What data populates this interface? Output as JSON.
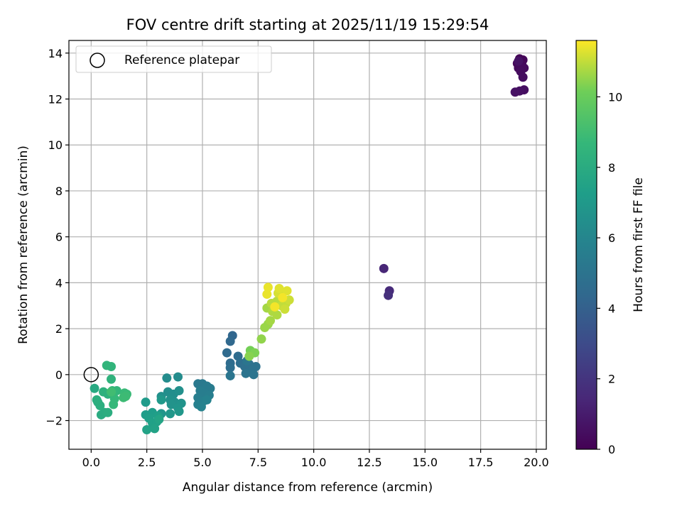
{
  "chart_data": {
    "type": "scatter",
    "title": "FOV centre drift starting at 2025/11/19 15:29:54",
    "xlabel": "Angular distance from reference (arcmin)",
    "ylabel": "Rotation from reference (arcmin)",
    "xlim": [
      -1.0,
      20.45
    ],
    "ylim": [
      -3.25,
      14.55
    ],
    "xticks": [
      0.0,
      2.5,
      5.0,
      7.5,
      10.0,
      12.5,
      15.0,
      17.5,
      20.0
    ],
    "xtick_labels": [
      "0.0",
      "2.5",
      "5.0",
      "7.5",
      "10.0",
      "12.5",
      "15.0",
      "17.5",
      "20.0"
    ],
    "yticks": [
      -2,
      0,
      2,
      4,
      6,
      8,
      10,
      12,
      14
    ],
    "ytick_labels": [
      "−2",
      "0",
      "2",
      "4",
      "6",
      "8",
      "10",
      "12",
      "14"
    ],
    "grid": true,
    "colormap": "viridis",
    "colorbar": {
      "label": "Hours from first FF file",
      "range": [
        0,
        11.6
      ],
      "ticks": [
        0,
        2,
        4,
        6,
        8,
        10
      ],
      "tick_labels": [
        "0",
        "2",
        "4",
        "6",
        "8",
        "10"
      ]
    },
    "legend": {
      "position": "top-left",
      "entries": [
        {
          "label": "Reference platepar",
          "marker": "open-circle"
        }
      ]
    },
    "reference_point": {
      "x": 0.0,
      "y": 0.0
    },
    "points": [
      {
        "x": 19.25,
        "y": 13.75,
        "c": 0.1
      },
      {
        "x": 19.4,
        "y": 13.7,
        "c": 0.15
      },
      {
        "x": 19.15,
        "y": 13.55,
        "c": 0.2
      },
      {
        "x": 19.35,
        "y": 13.5,
        "c": 0.25
      },
      {
        "x": 19.2,
        "y": 13.35,
        "c": 0.3
      },
      {
        "x": 19.45,
        "y": 13.35,
        "c": 0.35
      },
      {
        "x": 19.3,
        "y": 13.2,
        "c": 0.4
      },
      {
        "x": 19.4,
        "y": 12.95,
        "c": 0.45
      },
      {
        "x": 19.45,
        "y": 12.4,
        "c": 0.5
      },
      {
        "x": 19.25,
        "y": 12.35,
        "c": 0.55
      },
      {
        "x": 19.05,
        "y": 12.3,
        "c": 0.6
      },
      {
        "x": 19.2,
        "y": 13.65,
        "c": 0.65
      },
      {
        "x": 13.15,
        "y": 4.62,
        "c": 1.4
      },
      {
        "x": 13.4,
        "y": 3.65,
        "c": 1.6
      },
      {
        "x": 13.35,
        "y": 3.45,
        "c": 1.8
      },
      {
        "x": 6.35,
        "y": 1.7,
        "c": 4.3
      },
      {
        "x": 6.25,
        "y": 1.45,
        "c": 4.4
      },
      {
        "x": 6.1,
        "y": 0.95,
        "c": 4.5
      },
      {
        "x": 6.6,
        "y": 0.8,
        "c": 4.6
      },
      {
        "x": 6.25,
        "y": 0.5,
        "c": 4.6
      },
      {
        "x": 6.25,
        "y": 0.3,
        "c": 4.7
      },
      {
        "x": 6.7,
        "y": 0.5,
        "c": 4.7
      },
      {
        "x": 6.9,
        "y": 0.35,
        "c": 4.8
      },
      {
        "x": 7.1,
        "y": 0.45,
        "c": 4.8
      },
      {
        "x": 7.4,
        "y": 0.35,
        "c": 4.9
      },
      {
        "x": 7.25,
        "y": 0.2,
        "c": 4.9
      },
      {
        "x": 6.95,
        "y": 0.05,
        "c": 5.0
      },
      {
        "x": 7.3,
        "y": 0.0,
        "c": 5.0
      },
      {
        "x": 6.25,
        "y": -0.05,
        "c": 5.1
      },
      {
        "x": 7.0,
        "y": 0.6,
        "c": 5.1
      },
      {
        "x": 5.0,
        "y": -0.4,
        "c": 5.3
      },
      {
        "x": 4.8,
        "y": -0.4,
        "c": 5.3
      },
      {
        "x": 5.2,
        "y": -0.5,
        "c": 5.4
      },
      {
        "x": 5.35,
        "y": -0.6,
        "c": 5.4
      },
      {
        "x": 4.9,
        "y": -0.7,
        "c": 5.5
      },
      {
        "x": 5.1,
        "y": -0.8,
        "c": 5.5
      },
      {
        "x": 5.3,
        "y": -0.9,
        "c": 5.6
      },
      {
        "x": 4.8,
        "y": -1.0,
        "c": 5.6
      },
      {
        "x": 5.05,
        "y": -1.15,
        "c": 5.7
      },
      {
        "x": 4.8,
        "y": -1.3,
        "c": 5.7
      },
      {
        "x": 4.95,
        "y": -1.4,
        "c": 5.8
      },
      {
        "x": 5.2,
        "y": -1.1,
        "c": 5.8
      },
      {
        "x": 3.4,
        "y": -0.15,
        "c": 6.3
      },
      {
        "x": 3.9,
        "y": -0.1,
        "c": 6.3
      },
      {
        "x": 3.45,
        "y": -0.75,
        "c": 6.4
      },
      {
        "x": 3.7,
        "y": -0.85,
        "c": 6.4
      },
      {
        "x": 3.95,
        "y": -0.7,
        "c": 6.5
      },
      {
        "x": 3.15,
        "y": -0.95,
        "c": 6.5
      },
      {
        "x": 3.55,
        "y": -1.1,
        "c": 6.6
      },
      {
        "x": 3.75,
        "y": -1.2,
        "c": 6.6
      },
      {
        "x": 4.05,
        "y": -1.25,
        "c": 6.7
      },
      {
        "x": 3.6,
        "y": -1.3,
        "c": 6.7
      },
      {
        "x": 3.9,
        "y": -1.45,
        "c": 6.8
      },
      {
        "x": 3.15,
        "y": -1.7,
        "c": 6.8
      },
      {
        "x": 3.55,
        "y": -1.7,
        "c": 6.9
      },
      {
        "x": 3.95,
        "y": -1.6,
        "c": 6.9
      },
      {
        "x": 3.15,
        "y": -1.1,
        "c": 7.0
      },
      {
        "x": 2.45,
        "y": -1.2,
        "c": 7.1
      },
      {
        "x": 2.45,
        "y": -1.75,
        "c": 7.2
      },
      {
        "x": 2.75,
        "y": -1.65,
        "c": 7.2
      },
      {
        "x": 2.6,
        "y": -1.9,
        "c": 7.3
      },
      {
        "x": 3.0,
        "y": -1.8,
        "c": 7.3
      },
      {
        "x": 2.75,
        "y": -2.1,
        "c": 7.4
      },
      {
        "x": 2.95,
        "y": -2.05,
        "c": 7.4
      },
      {
        "x": 2.5,
        "y": -2.4,
        "c": 7.5
      },
      {
        "x": 2.85,
        "y": -2.35,
        "c": 7.5
      },
      {
        "x": 3.05,
        "y": -1.95,
        "c": 7.6
      },
      {
        "x": 0.15,
        "y": -0.6,
        "c": 7.9
      },
      {
        "x": 0.45,
        "y": -1.75,
        "c": 8.0
      },
      {
        "x": 0.6,
        "y": -1.65,
        "c": 8.0
      },
      {
        "x": 0.75,
        "y": -1.65,
        "c": 8.1
      },
      {
        "x": 0.3,
        "y": -1.2,
        "c": 8.1
      },
      {
        "x": 0.4,
        "y": -1.35,
        "c": 8.2
      },
      {
        "x": 0.25,
        "y": -1.1,
        "c": 8.2
      },
      {
        "x": 0.55,
        "y": -0.75,
        "c": 8.3
      },
      {
        "x": 0.75,
        "y": -0.85,
        "c": 8.3
      },
      {
        "x": 0.9,
        "y": -0.2,
        "c": 8.4
      },
      {
        "x": 0.7,
        "y": 0.4,
        "c": 8.5
      },
      {
        "x": 0.9,
        "y": 0.35,
        "c": 8.5
      },
      {
        "x": 0.95,
        "y": -0.7,
        "c": 8.6
      },
      {
        "x": 1.15,
        "y": -0.7,
        "c": 8.6
      },
      {
        "x": 1.05,
        "y": -1.05,
        "c": 8.7
      },
      {
        "x": 1.0,
        "y": -1.3,
        "c": 8.7
      },
      {
        "x": 1.5,
        "y": -0.8,
        "c": 8.8
      },
      {
        "x": 1.6,
        "y": -0.85,
        "c": 8.8
      },
      {
        "x": 1.45,
        "y": -1.0,
        "c": 8.9
      },
      {
        "x": 1.55,
        "y": -0.95,
        "c": 8.9
      },
      {
        "x": 0.9,
        "y": -0.75,
        "c": 9.0
      },
      {
        "x": 7.15,
        "y": 1.05,
        "c": 10.2
      },
      {
        "x": 7.35,
        "y": 0.95,
        "c": 10.3
      },
      {
        "x": 7.1,
        "y": 0.8,
        "c": 10.4
      },
      {
        "x": 7.65,
        "y": 1.55,
        "c": 10.5
      },
      {
        "x": 7.8,
        "y": 2.05,
        "c": 10.6
      },
      {
        "x": 7.95,
        "y": 2.2,
        "c": 10.6
      },
      {
        "x": 8.05,
        "y": 2.35,
        "c": 10.7
      },
      {
        "x": 7.9,
        "y": 2.9,
        "c": 10.7
      },
      {
        "x": 8.15,
        "y": 2.75,
        "c": 10.8
      },
      {
        "x": 8.35,
        "y": 2.6,
        "c": 10.8
      },
      {
        "x": 8.1,
        "y": 3.1,
        "c": 10.9
      },
      {
        "x": 8.35,
        "y": 3.2,
        "c": 10.9
      },
      {
        "x": 8.55,
        "y": 3.0,
        "c": 11.0
      },
      {
        "x": 8.75,
        "y": 3.1,
        "c": 11.0
      },
      {
        "x": 8.9,
        "y": 3.25,
        "c": 11.1
      },
      {
        "x": 8.7,
        "y": 2.85,
        "c": 11.1
      },
      {
        "x": 8.4,
        "y": 3.55,
        "c": 11.2
      },
      {
        "x": 8.65,
        "y": 3.6,
        "c": 11.2
      },
      {
        "x": 8.45,
        "y": 3.75,
        "c": 11.3
      },
      {
        "x": 8.8,
        "y": 3.65,
        "c": 11.3
      },
      {
        "x": 7.9,
        "y": 3.5,
        "c": 11.4
      },
      {
        "x": 7.95,
        "y": 3.8,
        "c": 11.4
      },
      {
        "x": 8.25,
        "y": 2.95,
        "c": 11.5
      },
      {
        "x": 8.6,
        "y": 3.35,
        "c": 11.5
      }
    ]
  }
}
